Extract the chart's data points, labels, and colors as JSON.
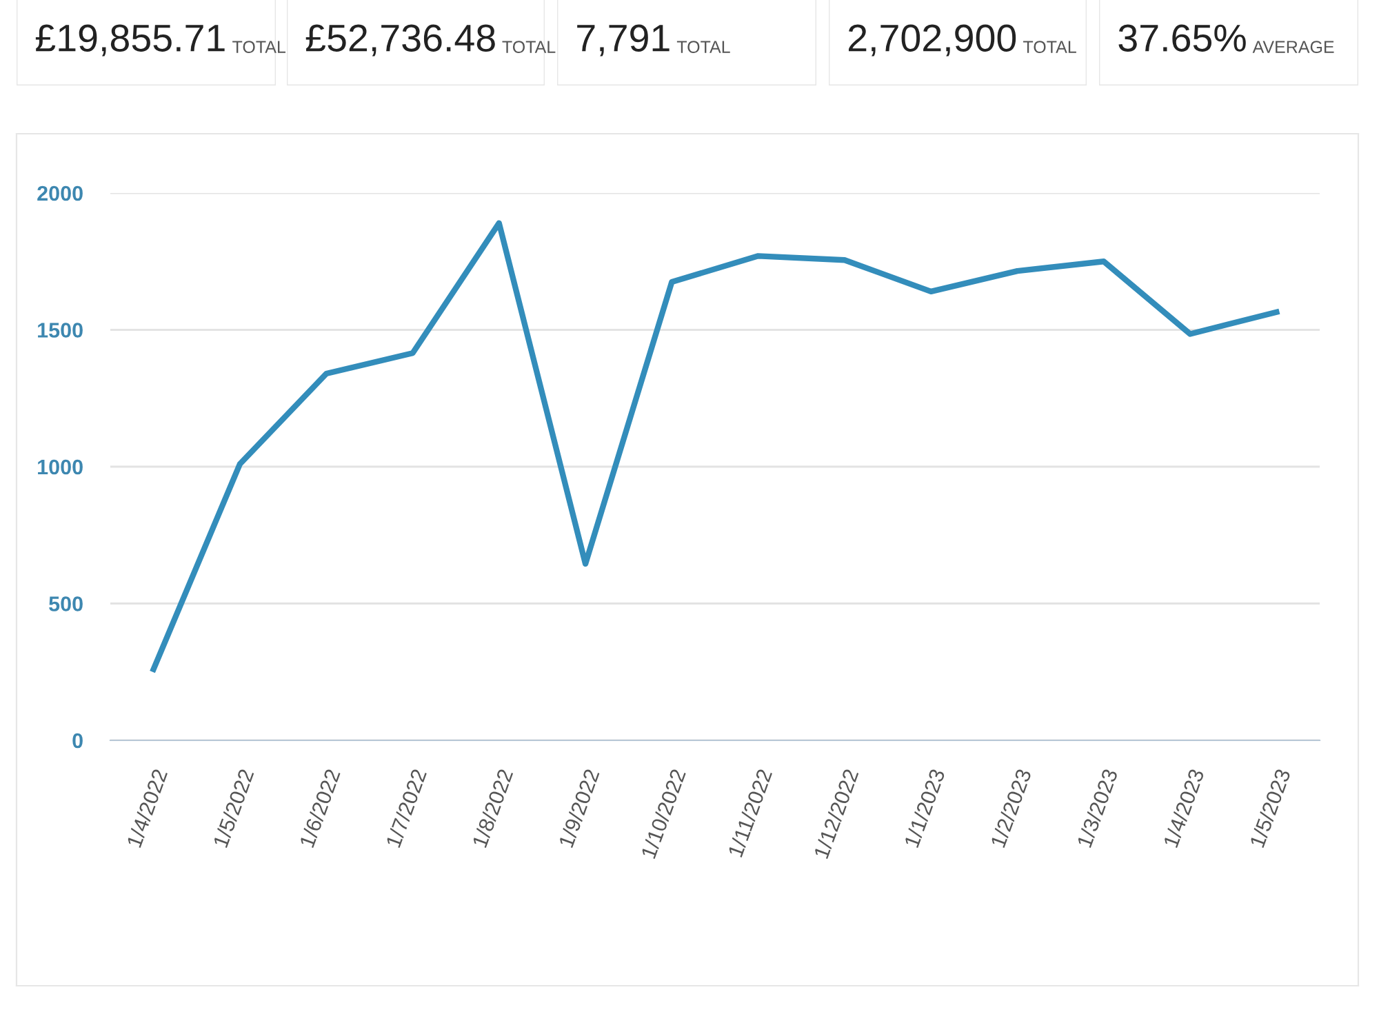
{
  "chart_data": [
    {
      "type": "other",
      "title": "£19,855.71",
      "subtitle": "TOTAL"
    },
    {
      "type": "other",
      "title": "£52,736.48",
      "subtitle": "TOTAL"
    },
    {
      "type": "other",
      "title": "7,791",
      "subtitle": "TOTAL"
    },
    {
      "type": "other",
      "title": "2,702,900",
      "subtitle": "TOTAL"
    },
    {
      "type": "other",
      "title": "37.65%",
      "subtitle": "AVERAGE"
    },
    {
      "type": "line",
      "categories": [
        "1/4/2022",
        "1/5/2022",
        "1/6/2022",
        "1/7/2022",
        "1/8/2022",
        "1/9/2022",
        "1/10/2022",
        "1/11/2022",
        "1/12/2022",
        "1/1/2023",
        "1/2/2023",
        "1/3/2023",
        "1/4/2023",
        "1/5/2023"
      ],
      "series": [
        {
          "color": "#338dbb",
          "values": [
            260,
            1010,
            1340,
            1415,
            1890,
            645,
            1675,
            1770,
            1755,
            1640,
            1715,
            1750,
            1485,
            1565
          ]
        }
      ],
      "ylim": [
        0,
        2000
      ],
      "yticks": [
        0,
        500,
        1000,
        1500,
        2000
      ],
      "grid": "y",
      "legend": false,
      "marker": "none",
      "line_style": "solid"
    }
  ]
}
